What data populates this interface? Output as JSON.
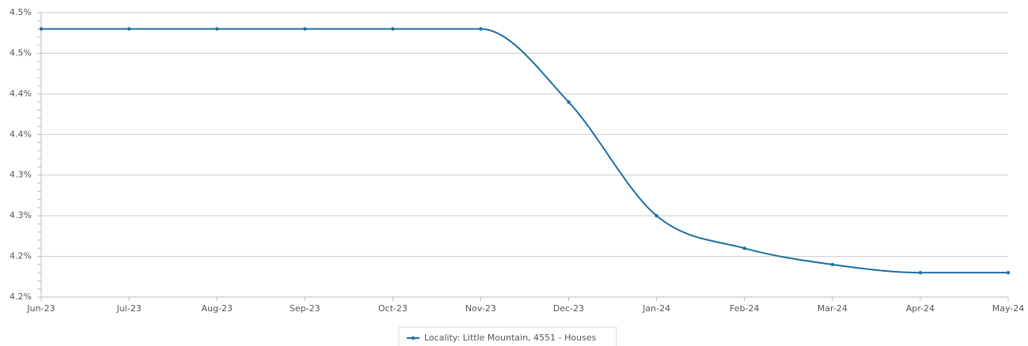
{
  "chart_data": {
    "type": "line",
    "categories": [
      "Jun-23",
      "Jul-23",
      "Aug-23",
      "Sep-23",
      "Oct-23",
      "Nov-23",
      "Dec-23",
      "Jan-24",
      "Feb-24",
      "Mar-24",
      "Apr-24",
      "May-24"
    ],
    "series": [
      {
        "name": "Locality: Little Mountain, 4551 - Houses",
        "color": "#1c6ea4",
        "values": [
          4.48,
          4.48,
          4.48,
          4.48,
          4.48,
          4.48,
          4.39,
          4.25,
          4.21,
          4.19,
          4.18,
          4.18
        ]
      }
    ],
    "ylim": [
      4.15,
      4.5
    ],
    "yticks": [
      {
        "value": 4.15,
        "label": "4.2%"
      },
      {
        "value": 4.2,
        "label": "4.2%"
      },
      {
        "value": 4.25,
        "label": "4.3%"
      },
      {
        "value": 4.3,
        "label": "4.3%"
      },
      {
        "value": 4.35,
        "label": "4.4%"
      },
      {
        "value": 4.4,
        "label": "4.4%"
      },
      {
        "value": 4.45,
        "label": "4.5%"
      },
      {
        "value": 4.5,
        "label": "4.5%"
      }
    ],
    "grid": true,
    "legend": "bottom"
  }
}
